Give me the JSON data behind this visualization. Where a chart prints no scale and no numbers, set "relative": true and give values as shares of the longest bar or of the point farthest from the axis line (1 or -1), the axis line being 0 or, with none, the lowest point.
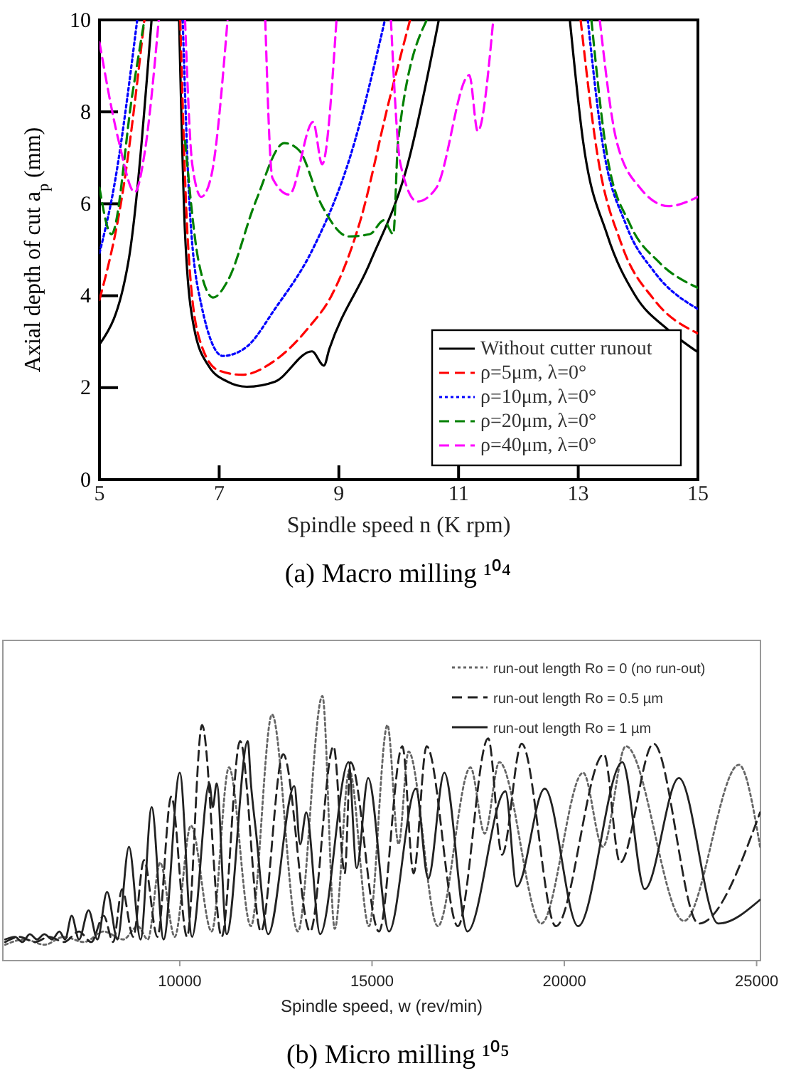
{
  "chart_data": [
    {
      "type": "line",
      "title": "(a) Macro milling ¹⁰⁴",
      "xlabel": "Spindle speed n (K rpm)",
      "ylabel": "Axial depth of cut a$_{p}$ (mm)",
      "xlim": [
        5,
        15
      ],
      "ylim": [
        0,
        10
      ],
      "xticks": [
        5,
        7,
        9,
        11,
        13,
        15
      ],
      "yticks": [
        0,
        2,
        4,
        6,
        8,
        10
      ],
      "legend": "bottom right",
      "grid": false,
      "marker": "none",
      "series": [
        {
          "name": "Without cutter runout",
          "color": "#000000",
          "line_style": "solid",
          "x": [
            5.0,
            5.48,
            5.87,
            6.1,
            6.33,
            6.43,
            6.58,
            6.82,
            7.14,
            7.46,
            7.93,
            8.55,
            8.75,
            8.84,
            9.52,
            10.15,
            10.67,
            11.8,
            12.86,
            13.08,
            13.48,
            13.95,
            14.51,
            15.0
          ],
          "values": [
            2.94,
            4.72,
            10,
            null,
            10,
            5.34,
            3.3,
            2.48,
            2.13,
            2.02,
            2.13,
            2.79,
            2.48,
            2.84,
            4.72,
            6.86,
            10,
            null,
            10,
            7.37,
            5.34,
            4.01,
            3.25,
            2.77
          ]
        },
        {
          "name": "ρ=5μm, λ=0°",
          "color": "#ff0000",
          "line_style": "dashed",
          "x": [
            5.0,
            5.4,
            5.75,
            6.0,
            6.35,
            6.47,
            6.66,
            6.98,
            7.38,
            7.93,
            8.49,
            8.88,
            9.36,
            9.83,
            10.19,
            11.6,
            13.04,
            13.32,
            13.72,
            14.27,
            15.0
          ],
          "values": [
            3.91,
            6.35,
            10,
            null,
            10,
            5.34,
            3.1,
            2.38,
            2.28,
            2.59,
            3.3,
            4.01,
            5.64,
            8.19,
            10,
            null,
            10,
            7.07,
            5.13,
            3.91,
            3.18
          ]
        },
        {
          "name": "ρ=10μm, λ=0°",
          "color": "#0000ff",
          "line_style": "dotted",
          "x": [
            5.0,
            5.24,
            5.63,
            6.0,
            6.39,
            6.51,
            6.7,
            7.06,
            7.46,
            7.93,
            8.57,
            9.2,
            9.77,
            11.5,
            13.16,
            13.4,
            13.8,
            14.27,
            15.0
          ],
          "values": [
            4.93,
            6.35,
            10,
            null,
            10,
            5.85,
            3.81,
            2.69,
            2.89,
            3.71,
            5.03,
            7.07,
            10,
            null,
            10,
            7.37,
            5.54,
            4.52,
            3.71
          ]
        },
        {
          "name": "ρ=20μm, λ=0°",
          "color": "#008000",
          "line_style": "dashed",
          "x": [
            5.0,
            5.2,
            5.55,
            5.75,
            6.1,
            6.43,
            6.66,
            6.9,
            7.14,
            7.61,
            8.09,
            8.33,
            8.72,
            9.16,
            9.52,
            9.75,
            9.91,
            9.99,
            10.47,
            11.8,
            13.22,
            13.48,
            13.87,
            14.35,
            15.0
          ],
          "values": [
            6.35,
            5.34,
            8.39,
            10,
            null,
            7.37,
            4.72,
            3.96,
            4.32,
            6.05,
            7.32,
            7.17,
            5.95,
            5.29,
            5.34,
            5.64,
            5.34,
            7.37,
            10,
            null,
            10,
            7.07,
            5.54,
            4.73,
            4.17
          ]
        },
        {
          "name": "ρ=40μm, λ=0°",
          "color": "#ff00ff",
          "line_style": "dashed",
          "x": [
            5.0,
            5.32,
            5.59,
            5.75,
            5.99,
            6.2,
            6.43,
            6.55,
            6.7,
            6.86,
            7.14,
            7.45,
            7.77,
            7.89,
            8.17,
            8.57,
            8.72,
            8.96,
            9.4,
            9.87,
            10.03,
            10.31,
            10.63,
            11.18,
            11.32,
            11.58,
            12.5,
            13.36,
            13.64,
            14.03,
            14.51,
            15.0
          ],
          "values": [
            9.51,
            7.37,
            6.25,
            7.07,
            10,
            null,
            10,
            6.86,
            6.15,
            6.56,
            10,
            null,
            10,
            6.56,
            6.2,
            7.78,
            6.86,
            10,
            null,
            10,
            6.86,
            6.05,
            6.35,
            8.8,
            7.58,
            10,
            null,
            10,
            7.37,
            6.35,
            5.95,
            6.15
          ]
        }
      ]
    },
    {
      "type": "line",
      "title": "(b) Micro milling ¹⁰⁵",
      "xlabel": "Spindle speed, w (rev/min)",
      "relative": true,
      "tick_labels": "x",
      "xlim": [
        5400,
        25100
      ],
      "xticks": [
        10000,
        15000,
        20000,
        25000
      ],
      "legend": "top right",
      "grid": false,
      "marker": "none",
      "series": [
        {
          "name": "run-out length Ro = 0 (no run-out)",
          "color": "#666666",
          "line_style": "dotted",
          "x": [
            5460,
            5970,
            6480,
            6990,
            7510,
            8020,
            8530,
            8910,
            9170,
            9490,
            9870,
            10290,
            10830,
            11280,
            11850,
            12400,
            13070,
            13710,
            14030,
            14410,
            14920,
            15400,
            15690,
            15950,
            16710,
            17560,
            17930,
            18310,
            19400,
            20490,
            21000,
            21600,
            23110,
            24540,
            25090
          ],
          "values": [
            0.06,
            0.08,
            0.06,
            0.09,
            0.07,
            0.11,
            0.08,
            0.13,
            0.08,
            0.37,
            0.09,
            0.51,
            0.11,
            0.73,
            0.13,
            0.93,
            0.11,
            1,
            0.12,
            0.72,
            0.13,
            0.89,
            0.44,
            0.79,
            0.13,
            0.73,
            0.48,
            0.75,
            0.14,
            0.71,
            0.43,
            0.81,
            0.15,
            0.74,
            0.43
          ]
        },
        {
          "name": "run-out length Ro = 0.5 µm",
          "color": "#222222",
          "line_style": "dashed",
          "x": [
            5460,
            5840,
            6230,
            6610,
            6990,
            7380,
            7700,
            8020,
            8270,
            8500,
            8790,
            9070,
            9420,
            9780,
            10190,
            10580,
            11090,
            11570,
            12110,
            12690,
            13390,
            14000,
            14290,
            14440,
            15180,
            15790,
            16080,
            16420,
            17230,
            18020,
            18380,
            18890,
            19780,
            21030,
            21450,
            22320,
            23490,
            25090
          ],
          "values": [
            0.07,
            0.09,
            0.07,
            0.09,
            0.07,
            0.11,
            0.07,
            0.17,
            0.07,
            0.27,
            0.09,
            0.38,
            0.09,
            0.62,
            0.09,
            0.89,
            0.09,
            0.83,
            0.11,
            0.78,
            0.11,
            0.81,
            0.33,
            0.75,
            0.11,
            0.81,
            0.33,
            0.81,
            0.13,
            0.84,
            0.4,
            0.82,
            0.13,
            0.78,
            0.37,
            0.82,
            0.14,
            0.56
          ]
        },
        {
          "name": "run-out length Ro = 1 µm",
          "color": "#222222",
          "line_style": "solid",
          "x": [
            5460,
            5715,
            5907,
            6100,
            6290,
            6480,
            6680,
            6870,
            7020,
            7190,
            7380,
            7630,
            7860,
            8110,
            8380,
            8680,
            8980,
            9270,
            9580,
            10000,
            10320,
            10770,
            10860,
            10960,
            11220,
            11770,
            11850,
            11980,
            12300,
            12980,
            13130,
            13290,
            13650,
            14390,
            14600,
            14900,
            15440,
            16140,
            16460,
            16880,
            17480,
            18470,
            18760,
            19490,
            20360,
            21510,
            22090,
            22980,
            24000,
            25090
          ],
          "values": [
            0.08,
            0.09,
            0.07,
            0.1,
            0.08,
            0.1,
            0.08,
            0.11,
            0.08,
            0.17,
            0.08,
            0.19,
            0.08,
            0.26,
            0.08,
            0.43,
            0.08,
            0.58,
            0.08,
            0.71,
            0.09,
            0.67,
            0.58,
            0.67,
            0.1,
            0.83,
            0.67,
            0.49,
            0.1,
            0.66,
            0.44,
            0.56,
            0.1,
            0.75,
            0.35,
            0.69,
            0.11,
            0.65,
            0.31,
            0.71,
            0.11,
            0.64,
            0.28,
            0.65,
            0.13,
            0.75,
            0.27,
            0.69,
            0.14,
            0.23
          ]
        }
      ]
    }
  ]
}
